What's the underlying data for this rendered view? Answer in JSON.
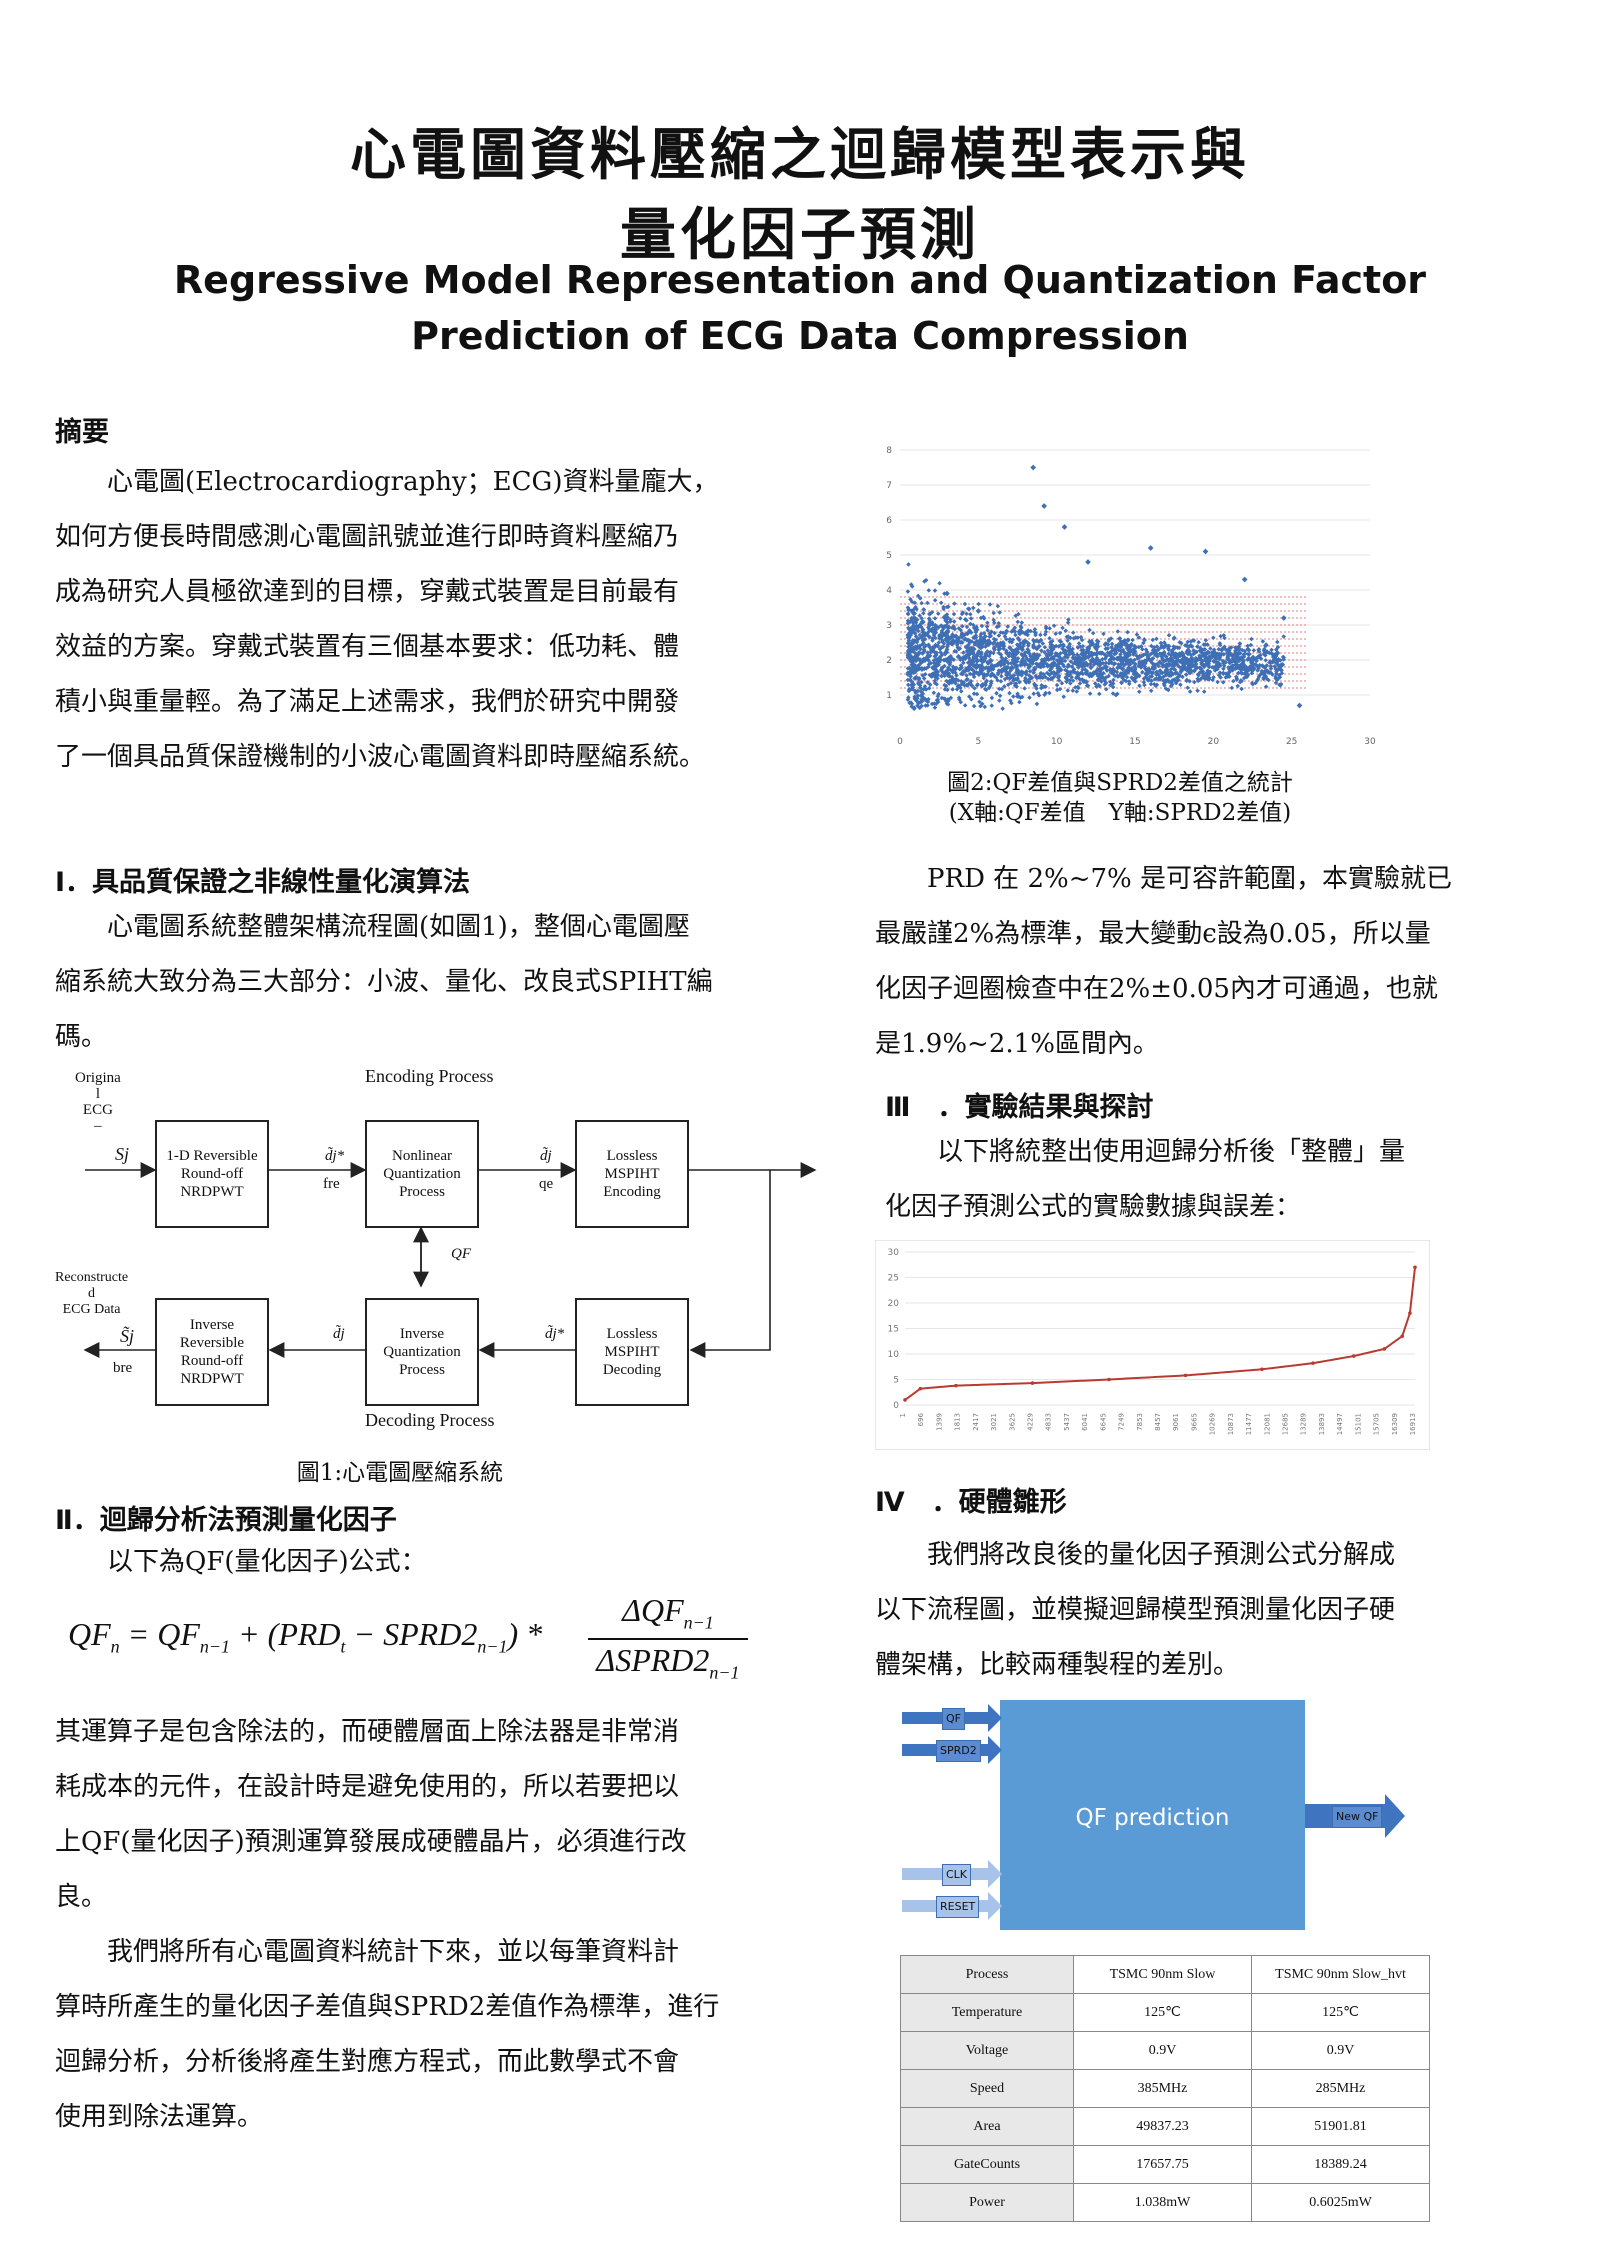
{
  "title": {
    "zh_line1": "心電圖資料壓縮之迴歸模型表示與",
    "zh_line2": "量化因子預測",
    "en_line1": "Regressive Model Representation and Quantization Factor",
    "en_line2": "Prediction of ECG Data Compression"
  },
  "abstract": {
    "heading": "摘要",
    "lines": [
      "　　心電圖(Electrocardiography；ECG)資料量龐大，",
      "如何方便長時間感測心電圖訊號並進行即時資料壓縮乃",
      "成為研究人員極欲達到的目標，穿戴式裝置是目前最有",
      "效益的方案。穿戴式裝置有三個基本要求：低功耗、體",
      "積小與重量輕。為了滿足上述需求，我們於研究中開發",
      "了一個具品質保證機制的小波心電圖資料即時壓縮系統。"
    ]
  },
  "sec1": {
    "heading": "Ⅰ．具品質保證之非線性量化演算法",
    "lines": [
      "　　心電圖系統整體架構流程圖(如圖1)，整個心電圖壓",
      "縮系統大致分為三大部分：小波、量化、改良式SPIHT編",
      "碼。"
    ]
  },
  "fig1": {
    "caption": "圖1:心電圖壓縮系統",
    "encoding_label": "Encoding Process",
    "decoding_label": "Decoding Process",
    "original_label": "Origina\nl\nECG\n–",
    "sj": "Sj",
    "reconstructed_label": "Reconstructe\nd\nECG Data",
    "sj_hat": "S̃j",
    "bre": "bre",
    "fre": "fre",
    "qe": "qe",
    "qf": "QF",
    "dj1": "d̃j*",
    "dj2": "d̃j",
    "dj3": "d̃j",
    "dj4": "d̃j*",
    "box_rev": "1-D Reversible\nRound-off\nNRDPWT",
    "box_nq": "Nonlinear\nQuantization\nProcess",
    "box_enc": "Lossless\nMSPIHT\nEncoding",
    "box_inv": "Inverse\nReversible\nRound-off\nNRDPWT",
    "box_iq": "Inverse\nQuantization\nProcess",
    "box_dec": "Lossless\nMSPIHT\nDecoding"
  },
  "sec2": {
    "heading": "Ⅱ．迴歸分析法預測量化因子",
    "intro": "　　以下為QF(量化因子)公式：",
    "lines_a": [
      "其運算子是包含除法的，而硬體層面上除法器是非常消",
      "耗成本的元件，在設計時是避免使用的，所以若要把以",
      "上QF(量化因子)預測運算發展成硬體晶片，必須進行改",
      "良。"
    ],
    "lines_b": [
      "　　我們將所有心電圖資料統計下來，並以每筆資料計",
      "算時所產生的量化因子差值與SPRD2差值作為標準，進行",
      "迴歸分析，分析後將產生對應方程式，而此數學式不會",
      "使用到除法運算。"
    ]
  },
  "fig2": {
    "caption_line1": "圖2:QF差值與SPRD2差值之統計",
    "caption_line2": "(X軸:QF差值　Y軸:SPRD2差值)"
  },
  "prd_text": {
    "lines": [
      "　　PRD 在 2%~7% 是可容許範圍，本實驗就已",
      "最嚴謹2%為標準，最大變動ϵ設為0.05，所以量",
      "化因子迴圈檢查中在2%±0.05內才可通過，也就",
      "是1.9%~2.1%區間內。"
    ]
  },
  "sec3": {
    "heading": "Ⅲ　．實驗結果與探討",
    "lines": [
      "　　以下將統整出使用迴歸分析後「整體」量",
      "化因子預測公式的實驗數據與誤差："
    ]
  },
  "sec4": {
    "heading": "Ⅳ　．硬體雛形",
    "lines": [
      "　　我們將改良後的量化因子預測公式分解成",
      "以下流程圖，並模擬迴歸模型預測量化因子硬",
      "體架構，比較兩種製程的差別。"
    ]
  },
  "hw": {
    "block_label": "QF prediction",
    "in_qf": "QF",
    "in_sprd2": "SPRD2",
    "in_clk": "CLK",
    "in_reset": "RESET",
    "out_label": "New QF"
  },
  "table": {
    "header": [
      "Process",
      "TSMC 90nm Slow",
      "TSMC 90nm Slow_hvt"
    ],
    "rows": [
      [
        "Temperature",
        "125℃",
        "125℃"
      ],
      [
        "Voltage",
        "0.9V",
        "0.9V"
      ],
      [
        "Speed",
        "385MHz",
        "285MHz"
      ],
      [
        "Area",
        "49837.23",
        "51901.81"
      ],
      [
        "GateCounts",
        "17657.75",
        "18389.24"
      ],
      [
        "Power",
        "1.038mW",
        "0.6025mW"
      ]
    ]
  },
  "chart_data": [
    {
      "type": "scatter",
      "xlim": [
        0,
        30
      ],
      "ylim": [
        0,
        8
      ],
      "x_ticks": [
        "0",
        "5",
        "10",
        "15",
        "20",
        "25",
        "30"
      ],
      "y_ticks": [
        "1",
        "2",
        "3",
        "4",
        "5",
        "6",
        "7",
        "8"
      ],
      "grid": true,
      "point_color": "#3f6fb5",
      "grid_color": "#e05050",
      "sample_points": [
        {
          "x": 8.5,
          "y": 7.5
        },
        {
          "x": 9.2,
          "y": 6.4
        },
        {
          "x": 10.5,
          "y": 5.8
        },
        {
          "x": 19.5,
          "y": 5.1
        },
        {
          "x": 16.0,
          "y": 5.2
        },
        {
          "x": 12.0,
          "y": 4.8
        },
        {
          "x": 22.0,
          "y": 4.3
        },
        {
          "x": 3.0,
          "y": 3.9
        },
        {
          "x": 5.0,
          "y": 3.4
        },
        {
          "x": 24.5,
          "y": 3.2
        },
        {
          "x": 25.5,
          "y": 0.7
        },
        {
          "x": 21.0,
          "y": 2.0
        }
      ]
    },
    {
      "type": "line",
      "y_ticks": [
        "0",
        "5",
        "10",
        "15",
        "20",
        "25",
        "30"
      ],
      "ylim": [
        0,
        30
      ],
      "x_ticks": [
        "1",
        "696",
        "1399",
        "1813",
        "2417",
        "3021",
        "3625",
        "4229",
        "4833",
        "5437",
        "6041",
        "6645",
        "7249",
        "7853",
        "8457",
        "9061",
        "9665",
        "10269",
        "10873",
        "11477",
        "12081",
        "12685",
        "13289",
        "13893",
        "14497",
        "15101",
        "15705",
        "16309",
        "16913"
      ],
      "line_color": "#b83a30",
      "series": [
        {
          "x": [
            0.0,
            0.03,
            0.1,
            0.25,
            0.4,
            0.55,
            0.7,
            0.8,
            0.88,
            0.94,
            0.975,
            0.99,
            1.0
          ],
          "values": [
            1.0,
            3.2,
            3.8,
            4.3,
            5.0,
            5.8,
            7.0,
            8.2,
            9.6,
            11.0,
            13.5,
            18.0,
            27.0
          ]
        }
      ]
    }
  ]
}
